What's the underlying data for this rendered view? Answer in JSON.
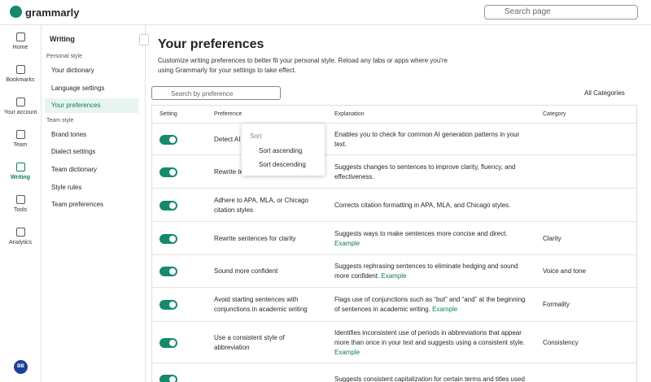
{
  "header": {
    "logo": "grammarly",
    "search_placeholder": "Search page"
  },
  "nav": {
    "items": [
      "Home",
      "Bookmarks",
      "Your account",
      "Team",
      "Writing",
      "Tools",
      "Analytics"
    ],
    "avatar": "BB"
  },
  "sidebar": {
    "title": "Writing",
    "sections": [
      {
        "title": "Personal style",
        "items": [
          "Your dictionary",
          "Language settings",
          "Your preferences"
        ]
      },
      {
        "title": "Team style",
        "items": [
          "Brand tones",
          "Dialect settings",
          "Team dictionary",
          "Style rules",
          "Team preferences"
        ]
      }
    ]
  },
  "main": {
    "title": "Your preferences",
    "description": "Customize writing preferences to better fit your personal style. Reload any tabs or apps where you're using Grammarly for your settings to take effect.",
    "search_placeholder": "Search by preference",
    "filter": "All Categories",
    "columns": [
      "Setting",
      "Preference",
      "Explanation",
      "Category"
    ],
    "rows": [
      {
        "preference": "Detect AI",
        "explanation": "Enables you to check for common AI generation patterns in your text."
      },
      {
        "preference": "Rewrite te",
        "explanation": "Suggests changes to sentences to improve clarity, fluency, and effectiveness."
      },
      {
        "preference": "Adhere to APA, MLA, or Chicago citation styles",
        "explanation": "Corrects citation formatting in APA, MLA, and Chicago styles."
      },
      {
        "preference": "Rewrite sentences for clarity",
        "explanation": "Suggests ways to make sentences more concise and direct.",
        "example": "Example",
        "category": "Clarity"
      },
      {
        "preference": "Sound more confident",
        "explanation": "Suggests rephrasing sentences to eliminate hedging and sound more confident.",
        "example": "Example",
        "category": "Voice and tone"
      },
      {
        "preference": "Avoid starting sentences with conjunctions in academic writing",
        "explanation": "Flags use of conjunctions such as “but” and “and” at the beginning of sentences in academic writing.",
        "example": "Example",
        "category": "Formality"
      },
      {
        "preference": "Use a consistent style of abbreviation",
        "explanation": "Identifies inconsistent use of periods in abbreviations that appear more than once in your text and suggests using a consistent style.",
        "example": "Example",
        "category": "Consistency"
      },
      {
        "preference": "",
        "explanation": "Suggests consistent capitalization for certain terms and titles used"
      }
    ],
    "menu": {
      "title": "Sort",
      "items": [
        "Sort ascending",
        "Sort descending"
      ]
    }
  }
}
